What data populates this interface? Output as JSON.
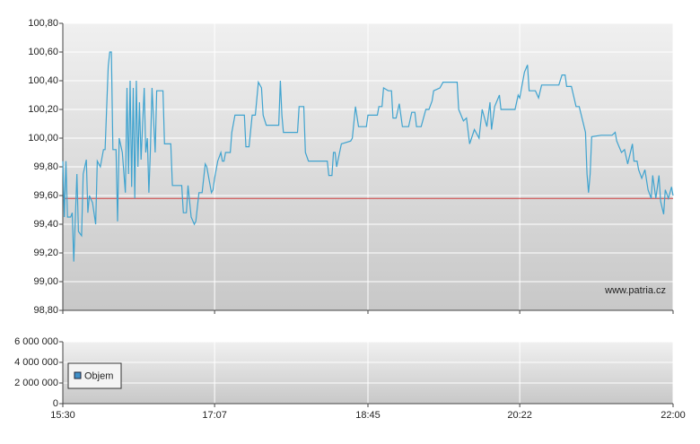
{
  "chart_data": [
    {
      "type": "line",
      "annotation": "www.patria.cz",
      "xlim": [
        930,
        1320
      ],
      "ylim": [
        98.8,
        100.8
      ],
      "yticks": [
        {
          "value": 98.8,
          "label": "98,80"
        },
        {
          "value": 99.0,
          "label": "99,00"
        },
        {
          "value": 99.2,
          "label": "99,20"
        },
        {
          "value": 99.4,
          "label": "99,40"
        },
        {
          "value": 99.6,
          "label": "99,60"
        },
        {
          "value": 99.8,
          "label": "99,80"
        },
        {
          "value": 100.0,
          "label": "100,00"
        },
        {
          "value": 100.2,
          "label": "100,20"
        },
        {
          "value": 100.4,
          "label": "100,40"
        },
        {
          "value": 100.6,
          "label": "100,60"
        },
        {
          "value": 100.8,
          "label": "100,80"
        }
      ],
      "grid": true,
      "reference_line": {
        "value": 99.58,
        "color": "#d04040"
      },
      "series": [
        {
          "color": "#3fa3cf",
          "x": [
            930,
            931,
            932,
            933,
            935,
            936,
            937,
            939,
            940,
            942,
            943,
            945,
            946,
            947,
            949,
            951,
            952,
            954,
            956,
            957,
            959,
            960,
            961,
            962,
            964,
            965,
            966,
            968,
            970,
            971,
            972,
            973,
            974,
            975,
            976,
            977,
            978,
            979,
            980,
            982,
            983,
            984,
            985,
            986,
            987,
            989,
            990,
            994,
            995,
            999,
            1000,
            1006,
            1007,
            1009,
            1010,
            1012,
            1014,
            1015,
            1017,
            1019,
            1021,
            1022,
            1025,
            1026,
            1027,
            1029,
            1031,
            1032,
            1033,
            1034,
            1037,
            1038,
            1040,
            1046,
            1047,
            1049,
            1051,
            1053,
            1055,
            1057,
            1058,
            1060,
            1068,
            1069,
            1070,
            1071,
            1080,
            1081,
            1084,
            1085,
            1087,
            1099,
            1100,
            1102,
            1103,
            1104,
            1105,
            1108,
            1114,
            1115,
            1117,
            1119,
            1124,
            1125,
            1131,
            1132,
            1134,
            1135,
            1138,
            1140,
            1141,
            1143,
            1145,
            1147,
            1151,
            1153,
            1155,
            1156,
            1159,
            1162,
            1164,
            1166,
            1167,
            1171,
            1173,
            1182,
            1183,
            1186,
            1188,
            1190,
            1193,
            1196,
            1198,
            1201,
            1203,
            1204,
            1206,
            1209,
            1210,
            1219,
            1221,
            1222,
            1225,
            1227,
            1228,
            1232,
            1234,
            1236,
            1239,
            1247,
            1249,
            1251,
            1252,
            1255,
            1258,
            1260,
            1264,
            1265,
            1266,
            1267,
            1268,
            1274,
            1281,
            1283,
            1284,
            1287,
            1289,
            1291,
            1294,
            1295,
            1297,
            1298,
            1300,
            1302,
            1304,
            1306,
            1307,
            1309,
            1311,
            1312,
            1314,
            1315,
            1317,
            1319,
            1320
          ],
          "values": [
            99.84,
            99.45,
            99.84,
            99.45,
            99.45,
            99.48,
            99.14,
            99.75,
            99.35,
            99.32,
            99.75,
            99.85,
            99.48,
            99.6,
            99.55,
            99.4,
            99.84,
            99.8,
            99.92,
            99.92,
            100.5,
            100.6,
            100.6,
            99.92,
            99.92,
            99.42,
            100.0,
            99.9,
            99.62,
            100.35,
            99.75,
            100.4,
            99.66,
            100.35,
            99.58,
            100.4,
            99.8,
            100.25,
            99.85,
            100.35,
            99.9,
            100.0,
            99.62,
            99.92,
            100.35,
            99.9,
            100.33,
            100.33,
            99.96,
            99.96,
            99.67,
            99.67,
            99.48,
            99.48,
            99.67,
            99.45,
            99.4,
            99.42,
            99.62,
            99.62,
            99.82,
            99.8,
            99.62,
            99.64,
            99.72,
            99.84,
            99.9,
            99.84,
            99.84,
            99.9,
            99.9,
            100.04,
            100.16,
            100.16,
            99.94,
            99.94,
            100.16,
            100.16,
            100.39,
            100.35,
            100.16,
            100.09,
            100.09,
            100.4,
            100.16,
            100.04,
            100.04,
            100.22,
            100.22,
            99.9,
            99.84,
            99.84,
            99.74,
            99.74,
            99.9,
            99.9,
            99.8,
            99.96,
            99.98,
            100.0,
            100.22,
            100.08,
            100.08,
            100.16,
            100.16,
            100.22,
            100.22,
            100.35,
            100.33,
            100.33,
            100.14,
            100.14,
            100.24,
            100.08,
            100.08,
            100.18,
            100.18,
            100.08,
            100.08,
            100.2,
            100.2,
            100.26,
            100.33,
            100.35,
            100.39,
            100.39,
            100.2,
            100.12,
            100.14,
            99.96,
            100.06,
            100.0,
            100.2,
            100.08,
            100.25,
            100.06,
            100.22,
            100.3,
            100.2,
            100.2,
            100.3,
            100.28,
            100.46,
            100.51,
            100.33,
            100.33,
            100.28,
            100.37,
            100.37,
            100.37,
            100.44,
            100.44,
            100.36,
            100.36,
            100.22,
            100.22,
            100.04,
            99.75,
            99.62,
            99.75,
            100.01,
            100.02,
            100.02,
            100.04,
            99.98,
            99.9,
            99.92,
            99.82,
            99.96,
            99.84,
            99.84,
            99.78,
            99.72,
            99.78,
            99.64,
            99.58,
            99.74,
            99.58,
            99.74,
            99.56,
            99.47,
            99.64,
            99.58,
            99.66,
            99.6
          ]
        }
      ]
    },
    {
      "type": "bar",
      "xlim": [
        930,
        1320
      ],
      "xticks": [
        {
          "value": 930,
          "label": "15:30"
        },
        {
          "value": 1027,
          "label": "17:07"
        },
        {
          "value": 1125,
          "label": "18:45"
        },
        {
          "value": 1222,
          "label": "20:22"
        },
        {
          "value": 1320,
          "label": "22:00"
        }
      ],
      "ylim": [
        0,
        6000000
      ],
      "yticks": [
        0,
        {
          "value": 2000000,
          "label": "2 000 000"
        },
        {
          "value": 4000000,
          "label": "4 000 000"
        },
        {
          "value": 6000000,
          "label": "6 000 000"
        }
      ],
      "grid": true,
      "series": [
        {
          "name": "Objem",
          "color": "#3f8fc8"
        }
      ]
    }
  ]
}
